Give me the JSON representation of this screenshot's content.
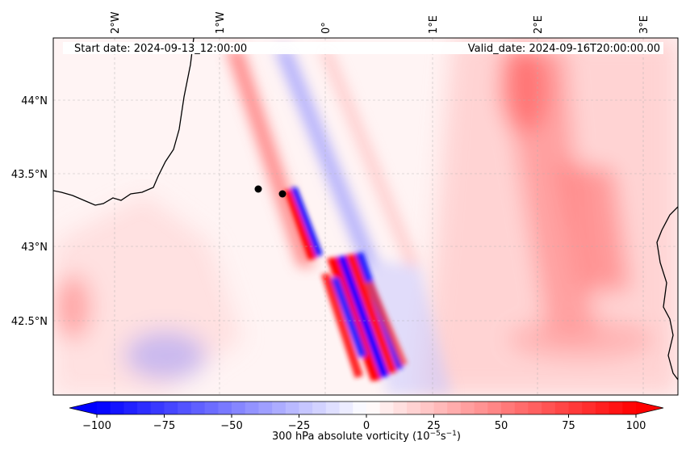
{
  "header": {
    "start_date": "Start date: 2024-09-13_12:00:00",
    "valid_date": "Valid_date: 2024-09-16T20:00:00.00"
  },
  "map": {
    "lon_ticks": [
      "2°W",
      "1°W",
      "0°",
      "1°E",
      "2°E",
      "3°E"
    ],
    "lat_ticks": [
      "44°N",
      "43.5°N",
      "43°N",
      "42.5°N"
    ],
    "field_colors": {
      "negative": "#0000ff",
      "neutral": "#ffffff",
      "positive": "#ff0000"
    }
  },
  "colorbar": {
    "ticks": [
      "−100",
      "−75",
      "−50",
      "−25",
      "0",
      "25",
      "50",
      "75",
      "100"
    ],
    "label": "300 hPa absolute vorticity (10",
    "label_exp1": "−5",
    "label_mid": "s",
    "label_exp2": "−1",
    "label_end": ")"
  }
}
